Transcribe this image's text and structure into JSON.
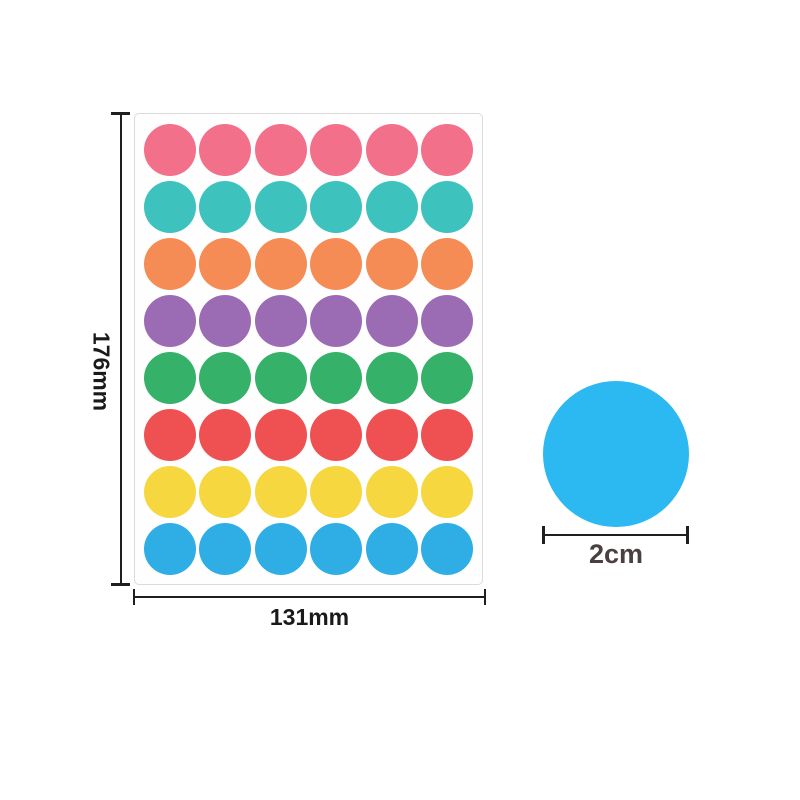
{
  "image": {
    "background": "#ffffff",
    "description": "Colored round dot sticker sheet with size dimensions"
  },
  "sheet": {
    "rows": 8,
    "columns": 6,
    "background": "#fefefe",
    "border_color": "#dbdbdb",
    "row_colors": [
      {
        "name": "pink",
        "hex": "#F3708B"
      },
      {
        "name": "teal",
        "hex": "#3DC2BD"
      },
      {
        "name": "orange",
        "hex": "#F68C55"
      },
      {
        "name": "purple",
        "hex": "#9B6BB3"
      },
      {
        "name": "green",
        "hex": "#35B169"
      },
      {
        "name": "red",
        "hex": "#EF5153"
      },
      {
        "name": "yellow",
        "hex": "#F6D73F"
      },
      {
        "name": "blue",
        "hex": "#2FAEE5"
      }
    ]
  },
  "dimensions": {
    "height_label": "176mm",
    "width_label": "131mm",
    "line_color": "#1f1f1f",
    "label_color": "#1a1a1a"
  },
  "sample_dot": {
    "color_name": "blue",
    "hex": "#2CB8F0",
    "diameter_label": "2cm",
    "label_color": "#4a4040"
  }
}
